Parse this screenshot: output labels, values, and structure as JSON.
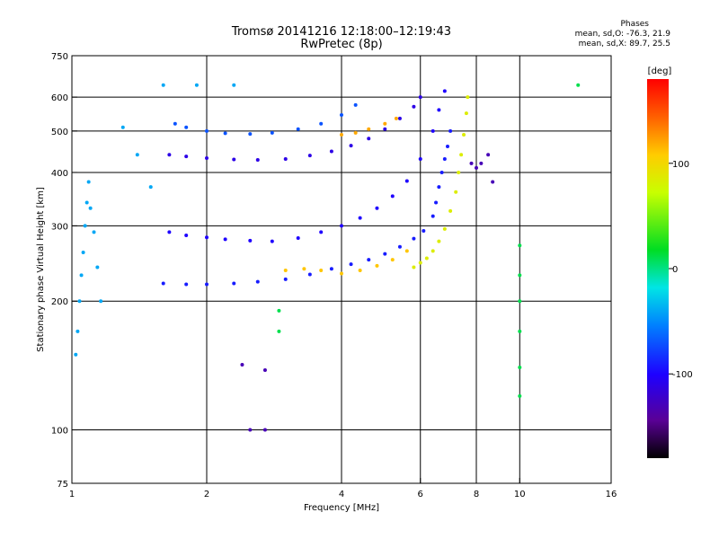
{
  "header": {
    "title_line1": "Tromsø 20141216 12:18:00–12:19:43",
    "title_line2": "RwPretec (8p)",
    "stats_title": "Phases",
    "stats_o": "mean, sd,O: -76.3, 21.9",
    "stats_x": "mean, sd,X:  89.7, 25.5"
  },
  "chart_data": {
    "type": "scatter",
    "xlabel": "Frequency [MHz]",
    "ylabel": "Stationary phase Virtual Height [km]",
    "xscale": "log",
    "yscale": "log",
    "xlim": [
      1,
      16
    ],
    "ylim": [
      75,
      750
    ],
    "x_ticks": [
      1,
      2,
      4,
      6,
      8,
      10,
      16
    ],
    "y_ticks": [
      75,
      100,
      200,
      300,
      400,
      500,
      600,
      750
    ],
    "x_grid": [
      2,
      4,
      6,
      8,
      10
    ],
    "y_grid": [
      100,
      200,
      300,
      400,
      500,
      600
    ],
    "colorbar": {
      "label": "[deg]",
      "range": [
        -180,
        180
      ],
      "ticks": [
        100,
        0,
        -100
      ]
    },
    "series": [
      {
        "name": "",
        "phase": -90,
        "points": [
          [
            1.6,
            220
          ],
          [
            1.8,
            219
          ],
          [
            2.0,
            219
          ],
          [
            2.3,
            220
          ],
          [
            2.6,
            222
          ],
          [
            3.0,
            225
          ],
          [
            3.4,
            231
          ],
          [
            3.8,
            238
          ],
          [
            4.2,
            244
          ],
          [
            4.6,
            250
          ],
          [
            5.0,
            258
          ],
          [
            5.4,
            268
          ],
          [
            5.8,
            280
          ],
          [
            6.1,
            292
          ],
          [
            6.4,
            316
          ],
          [
            6.5,
            340
          ],
          [
            6.6,
            370
          ],
          [
            6.7,
            400
          ],
          [
            6.8,
            430
          ],
          [
            6.9,
            460
          ],
          [
            7.0,
            500
          ]
        ]
      },
      {
        "name": "",
        "phase": -100,
        "points": [
          [
            1.65,
            290
          ],
          [
            1.8,
            285
          ],
          [
            2.0,
            282
          ],
          [
            2.2,
            279
          ],
          [
            2.5,
            277
          ],
          [
            2.8,
            276
          ],
          [
            3.2,
            281
          ],
          [
            3.6,
            290
          ],
          [
            4.0,
            300
          ],
          [
            4.4,
            313
          ],
          [
            4.8,
            330
          ],
          [
            5.2,
            352
          ],
          [
            5.6,
            382
          ],
          [
            6.0,
            430
          ],
          [
            6.4,
            500
          ],
          [
            6.6,
            560
          ],
          [
            6.8,
            620
          ]
        ]
      },
      {
        "name": "",
        "phase": -110,
        "points": [
          [
            1.65,
            440
          ],
          [
            1.8,
            436
          ],
          [
            2.0,
            432
          ],
          [
            2.3,
            429
          ],
          [
            2.6,
            428
          ],
          [
            3.0,
            430
          ],
          [
            3.4,
            438
          ],
          [
            3.8,
            448
          ],
          [
            4.2,
            462
          ],
          [
            4.6,
            480
          ],
          [
            5.0,
            505
          ],
          [
            5.4,
            535
          ],
          [
            5.8,
            570
          ],
          [
            6.0,
            600
          ]
        ]
      },
      {
        "name": "",
        "phase": -70,
        "points": [
          [
            1.7,
            520
          ],
          [
            1.8,
            510
          ],
          [
            2.0,
            500
          ],
          [
            2.2,
            494
          ],
          [
            2.5,
            492
          ],
          [
            2.8,
            495
          ],
          [
            3.2,
            505
          ],
          [
            3.6,
            520
          ],
          [
            4.0,
            545
          ],
          [
            4.3,
            575
          ]
        ]
      },
      {
        "name": "",
        "phase": 85,
        "points": [
          [
            5.8,
            240
          ],
          [
            6.0,
            246
          ],
          [
            6.2,
            252
          ],
          [
            6.4,
            262
          ],
          [
            6.6,
            276
          ],
          [
            6.8,
            295
          ],
          [
            7.0,
            325
          ],
          [
            7.2,
            360
          ],
          [
            7.3,
            400
          ],
          [
            7.4,
            440
          ],
          [
            7.5,
            490
          ],
          [
            7.6,
            550
          ],
          [
            7.65,
            600
          ]
        ]
      },
      {
        "name": "",
        "phase": 110,
        "points": [
          [
            3.0,
            236
          ],
          [
            3.3,
            238
          ],
          [
            3.6,
            236
          ],
          [
            4.0,
            232
          ],
          [
            4.4,
            236
          ],
          [
            4.8,
            242
          ],
          [
            5.2,
            250
          ],
          [
            5.6,
            262
          ]
        ]
      },
      {
        "name": "",
        "phase": 120,
        "points": [
          [
            4.0,
            490
          ],
          [
            4.3,
            495
          ],
          [
            4.6,
            505
          ],
          [
            5.0,
            520
          ],
          [
            5.3,
            535
          ]
        ]
      },
      {
        "name": "",
        "phase": -40,
        "points": [
          [
            1.02,
            150
          ],
          [
            1.03,
            170
          ],
          [
            1.04,
            200
          ],
          [
            1.05,
            230
          ],
          [
            1.06,
            260
          ],
          [
            1.07,
            300
          ],
          [
            1.08,
            340
          ],
          [
            1.09,
            380
          ],
          [
            1.1,
            330
          ],
          [
            1.12,
            290
          ],
          [
            1.14,
            240
          ],
          [
            1.16,
            200
          ],
          [
            1.3,
            510
          ],
          [
            1.4,
            440
          ],
          [
            1.5,
            370
          ],
          [
            1.6,
            640
          ],
          [
            1.9,
            640
          ],
          [
            2.3,
            640
          ]
        ]
      },
      {
        "name": "",
        "phase": 10,
        "points": [
          [
            2.9,
            190
          ],
          [
            2.9,
            170
          ],
          [
            10.0,
            270
          ],
          [
            10.0,
            230
          ],
          [
            10.0,
            200
          ],
          [
            10.0,
            170
          ],
          [
            10.0,
            140
          ],
          [
            10.0,
            120
          ],
          [
            13.5,
            640
          ]
        ]
      },
      {
        "name": "",
        "phase": -130,
        "points": [
          [
            7.8,
            420
          ],
          [
            8.0,
            410
          ],
          [
            8.2,
            420
          ],
          [
            8.5,
            440
          ],
          [
            8.7,
            380
          ],
          [
            2.4,
            142
          ],
          [
            2.7,
            138
          ],
          [
            2.5,
            100
          ],
          [
            2.7,
            100
          ]
        ]
      }
    ]
  }
}
